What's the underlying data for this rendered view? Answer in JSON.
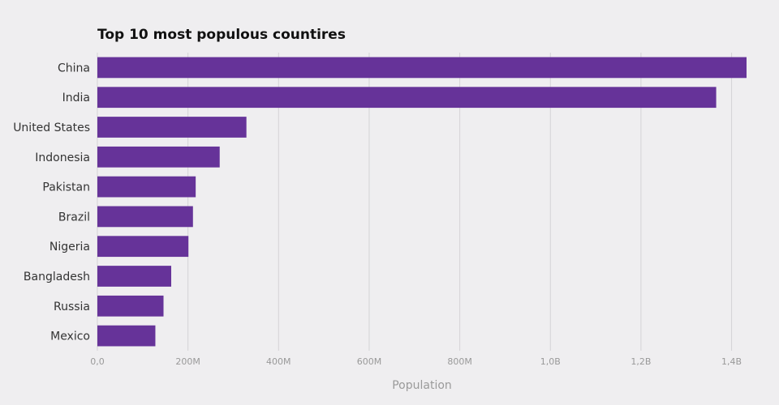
{
  "chart_data": {
    "type": "bar",
    "orientation": "horizontal",
    "title": "Top 10 most populous countires",
    "xlabel": "Population",
    "ylabel": "",
    "categories": [
      "China",
      "India",
      "United States",
      "Indonesia",
      "Pakistan",
      "Brazil",
      "Nigeria",
      "Bangladesh",
      "Russia",
      "Mexico"
    ],
    "values": [
      1433000000,
      1366000000,
      329000000,
      270000000,
      217000000,
      211000000,
      201000000,
      163000000,
      146000000,
      128000000
    ],
    "xlim": [
      0,
      1433000000
    ],
    "ticks": [
      0,
      200000000,
      400000000,
      600000000,
      800000000,
      1000000000,
      1200000000,
      1400000000
    ],
    "tick_labels": [
      "0,0",
      "200M",
      "400M",
      "600M",
      "800M",
      "1,0B",
      "1,2B",
      "1,4B"
    ],
    "grid": true,
    "colors": {
      "bar": "#663399",
      "background": "#efeef0",
      "grid": "#d4d3d6"
    }
  }
}
